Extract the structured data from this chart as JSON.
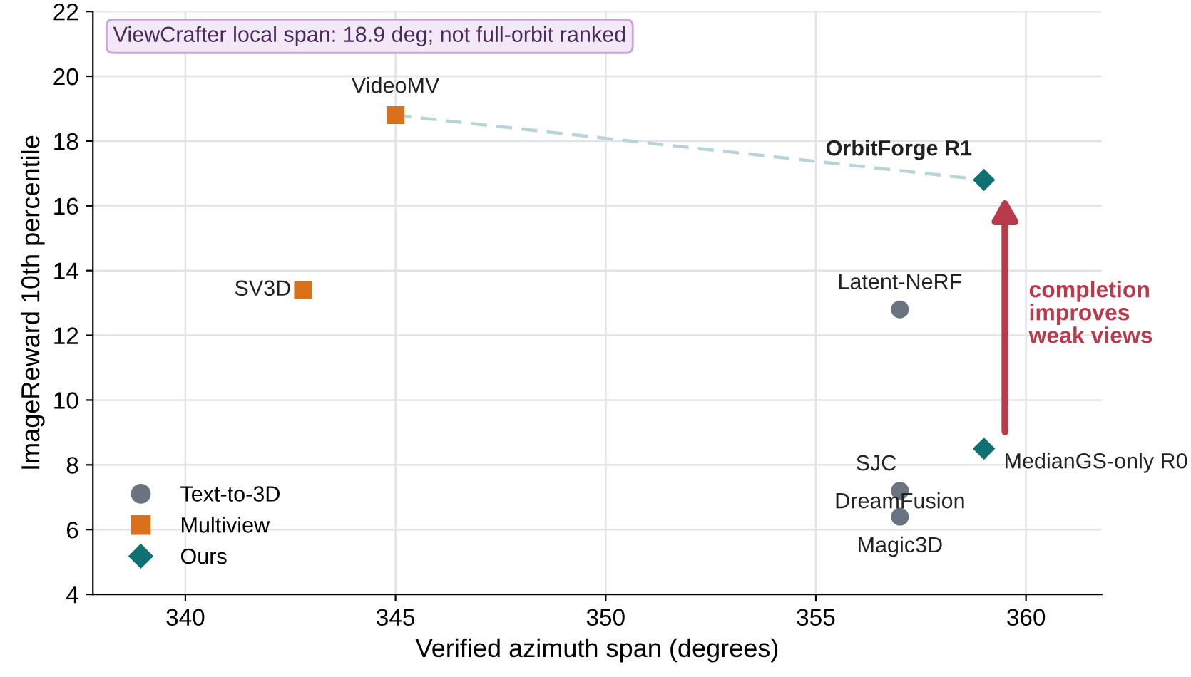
{
  "chart_data": {
    "type": "scatter",
    "xlabel": "Verified azimuth span (degrees)",
    "ylabel": "ImageReward 10th percentile",
    "xlim": [
      337.8,
      361.8
    ],
    "xticks": [
      340,
      345,
      350,
      355,
      360
    ],
    "ylim": [
      4,
      22
    ],
    "yticks": [
      4,
      6,
      8,
      10,
      12,
      14,
      16,
      18,
      20,
      22
    ],
    "grid": true,
    "legend": "bottom left",
    "series": [
      {
        "type": "line",
        "x": [
          345,
          359
        ],
        "values": [
          18.8,
          16.8
        ],
        "color": "#b8d4d8",
        "line_style": "dashed",
        "marker": "none"
      },
      {
        "name": "Text-to-3D",
        "color": "#6b7280",
        "marker": "circle",
        "x": [
          357,
          357,
          357
        ],
        "values": [
          12.8,
          7.2,
          6.4
        ]
      },
      {
        "name": "Multiview",
        "color": "#d9711c",
        "marker": "square",
        "x": [
          345,
          342.8
        ],
        "values": [
          18.8,
          13.4
        ]
      },
      {
        "name": "Ours",
        "color": "#0f7173",
        "marker": "diamond",
        "x": [
          359,
          359
        ],
        "values": [
          16.8,
          8.5
        ]
      }
    ],
    "annotations": [
      "ViewCrafter local span: 18.9 deg; not full-orbit ranked",
      {
        "text": "Latent-NeRF",
        "x": 357,
        "y": 12.8
      },
      {
        "text": "SJC",
        "x": 357,
        "y": 7.2
      },
      {
        "text": "DreamFusion",
        "x": 357,
        "y": 6.4
      },
      {
        "text": "Magic3D",
        "x": 357,
        "y": 6.4
      },
      {
        "text": "VideoMV",
        "x": 345,
        "y": 18.8
      },
      {
        "text": "SV3D",
        "x": 342.8,
        "y": 13.4
      },
      {
        "text": "OrbitForge R1",
        "x": 359,
        "y": 16.8
      },
      {
        "text": "MedianGS-only R0",
        "x": 359,
        "y": 8.5
      },
      "completion\nimproves\nweak views"
    ]
  }
}
